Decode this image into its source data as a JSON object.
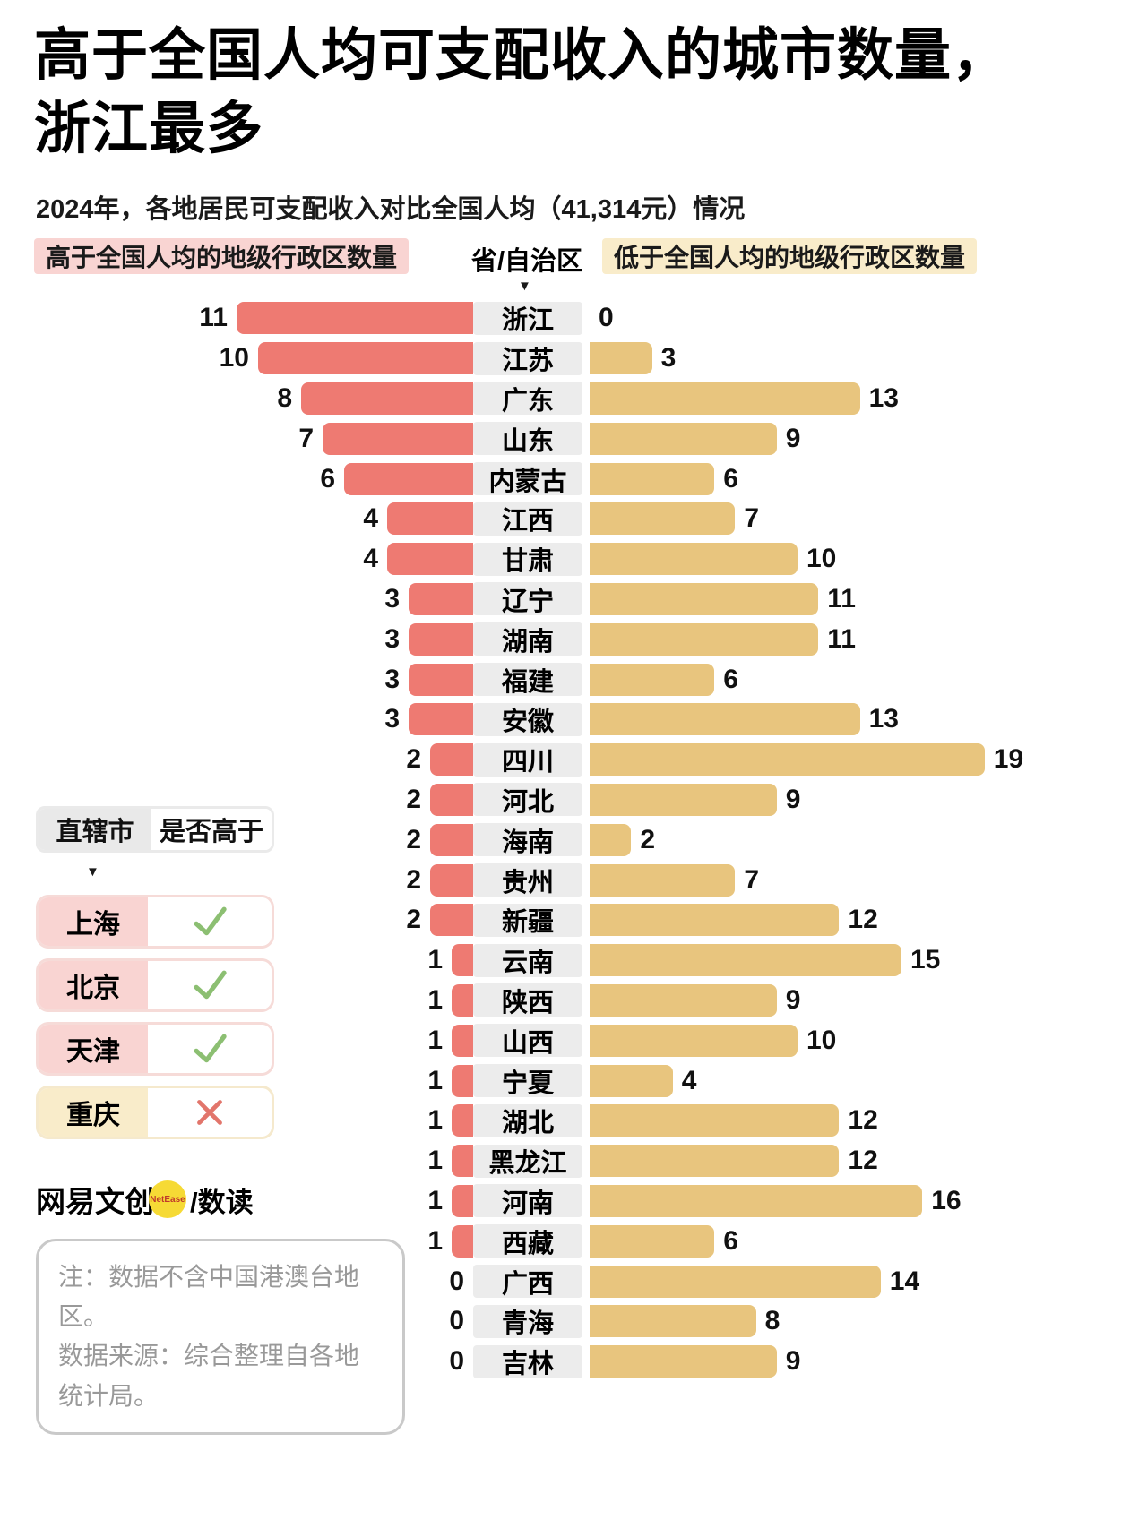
{
  "header": {
    "title_line1": "高于全国人均可支配收入的城市数量，",
    "title_line2": "浙江最多",
    "subtitle": "2024年，各地居民可支配收入对比全国人均（41,314元）情况"
  },
  "legend": {
    "left": "高于全国人均的地级行政区数量",
    "center": "省/自治区",
    "right": "低于全国人均的地级行政区数量",
    "pointer": "▼"
  },
  "colors": {
    "above_bar": "#ee7a72",
    "below_bar": "#e8c57e",
    "above_light": "#f9d4d2",
    "below_light": "#f9ecca",
    "center_box": "#ececec",
    "check_green": "#8cbf72",
    "cross_red": "#e2756b"
  },
  "chart_data": {
    "type": "bar",
    "orientation": "diverging-horizontal",
    "title": "高于全国人均可支配收入的城市数量，浙江最多",
    "subtitle": "2024年，各地居民可支配收入对比全国人均（41,314元）情况",
    "categories": [
      "浙江",
      "江苏",
      "广东",
      "山东",
      "内蒙古",
      "江西",
      "甘肃",
      "辽宁",
      "湖南",
      "福建",
      "安徽",
      "四川",
      "河北",
      "海南",
      "贵州",
      "新疆",
      "云南",
      "陕西",
      "山西",
      "宁夏",
      "湖北",
      "黑龙江",
      "河南",
      "西藏",
      "广西",
      "青海",
      "吉林"
    ],
    "series": [
      {
        "name": "高于全国人均的地级行政区数量",
        "side": "left",
        "values": [
          11,
          10,
          8,
          7,
          6,
          4,
          4,
          3,
          3,
          3,
          3,
          2,
          2,
          2,
          2,
          2,
          1,
          1,
          1,
          1,
          1,
          1,
          1,
          1,
          0,
          0,
          0
        ]
      },
      {
        "name": "低于全国人均的地级行政区数量",
        "side": "right",
        "values": [
          0,
          3,
          13,
          9,
          6,
          7,
          10,
          11,
          11,
          6,
          13,
          19,
          9,
          2,
          7,
          12,
          15,
          9,
          10,
          4,
          12,
          12,
          16,
          6,
          14,
          8,
          9
        ]
      }
    ],
    "left_max": 11,
    "right_max": 19,
    "grid": false,
    "legend_position": "top"
  },
  "municipalities": {
    "header_label": "直辖市",
    "header_question": "是否高于",
    "pointer": "▼",
    "rows": [
      {
        "name": "上海",
        "above": true
      },
      {
        "name": "北京",
        "above": true
      },
      {
        "name": "天津",
        "above": true
      },
      {
        "name": "重庆",
        "above": false
      }
    ]
  },
  "footer": {
    "brand": "网易文创",
    "brand_badge": "NetEase",
    "credit": "/数读",
    "note_lines": [
      "注：数据不含中国港澳台地区。",
      "数据来源：综合整理自各地",
      "统计局。"
    ]
  }
}
